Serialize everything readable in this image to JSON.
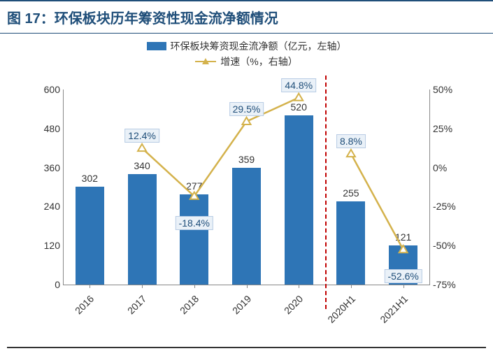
{
  "title": "图 17：环保板块历年筹资性现金流净额情况",
  "title_color": "#1f4e79",
  "title_fontsize": 20,
  "legend": {
    "bar_label": "环保板块筹资现金流净额（亿元，左轴）",
    "line_label": "增速（%，右轴）",
    "bar_color": "#2e75b6",
    "line_color": "#d4b24c"
  },
  "chart": {
    "type": "bar+line",
    "categories": [
      "2016",
      "2017",
      "2018",
      "2019",
      "2020",
      "2020H1",
      "2021H1"
    ],
    "bar_values": [
      302,
      340,
      277,
      359,
      520,
      255,
      121
    ],
    "line_values": [
      null,
      12.4,
      -18.4,
      29.5,
      44.8,
      8.8,
      -52.6
    ],
    "line_labels": [
      "",
      "12.4%",
      "-18.4%",
      "29.5%",
      "44.8%",
      "8.8%",
      "-52.6%"
    ],
    "bar_color": "#2e75b6",
    "line_color": "#d4b24c",
    "marker_fill": "#ffffff",
    "y_left": {
      "min": 0,
      "max": 600,
      "step": 120,
      "ticks": [
        "0",
        "120",
        "240",
        "360",
        "480",
        "600"
      ]
    },
    "y_right": {
      "min": -75,
      "max": 50,
      "step": 25,
      "ticks": [
        "-75%",
        "-50%",
        "-25%",
        "0%",
        "25%",
        "50%"
      ]
    },
    "divider_after_index": 4,
    "bar_width": 0.55,
    "background_color": "#ffffff",
    "label_fontsize": 14,
    "pct_box_bg": "#eaf1f8",
    "pct_box_border": "#b8cce4",
    "divider_color": "#c00000"
  }
}
